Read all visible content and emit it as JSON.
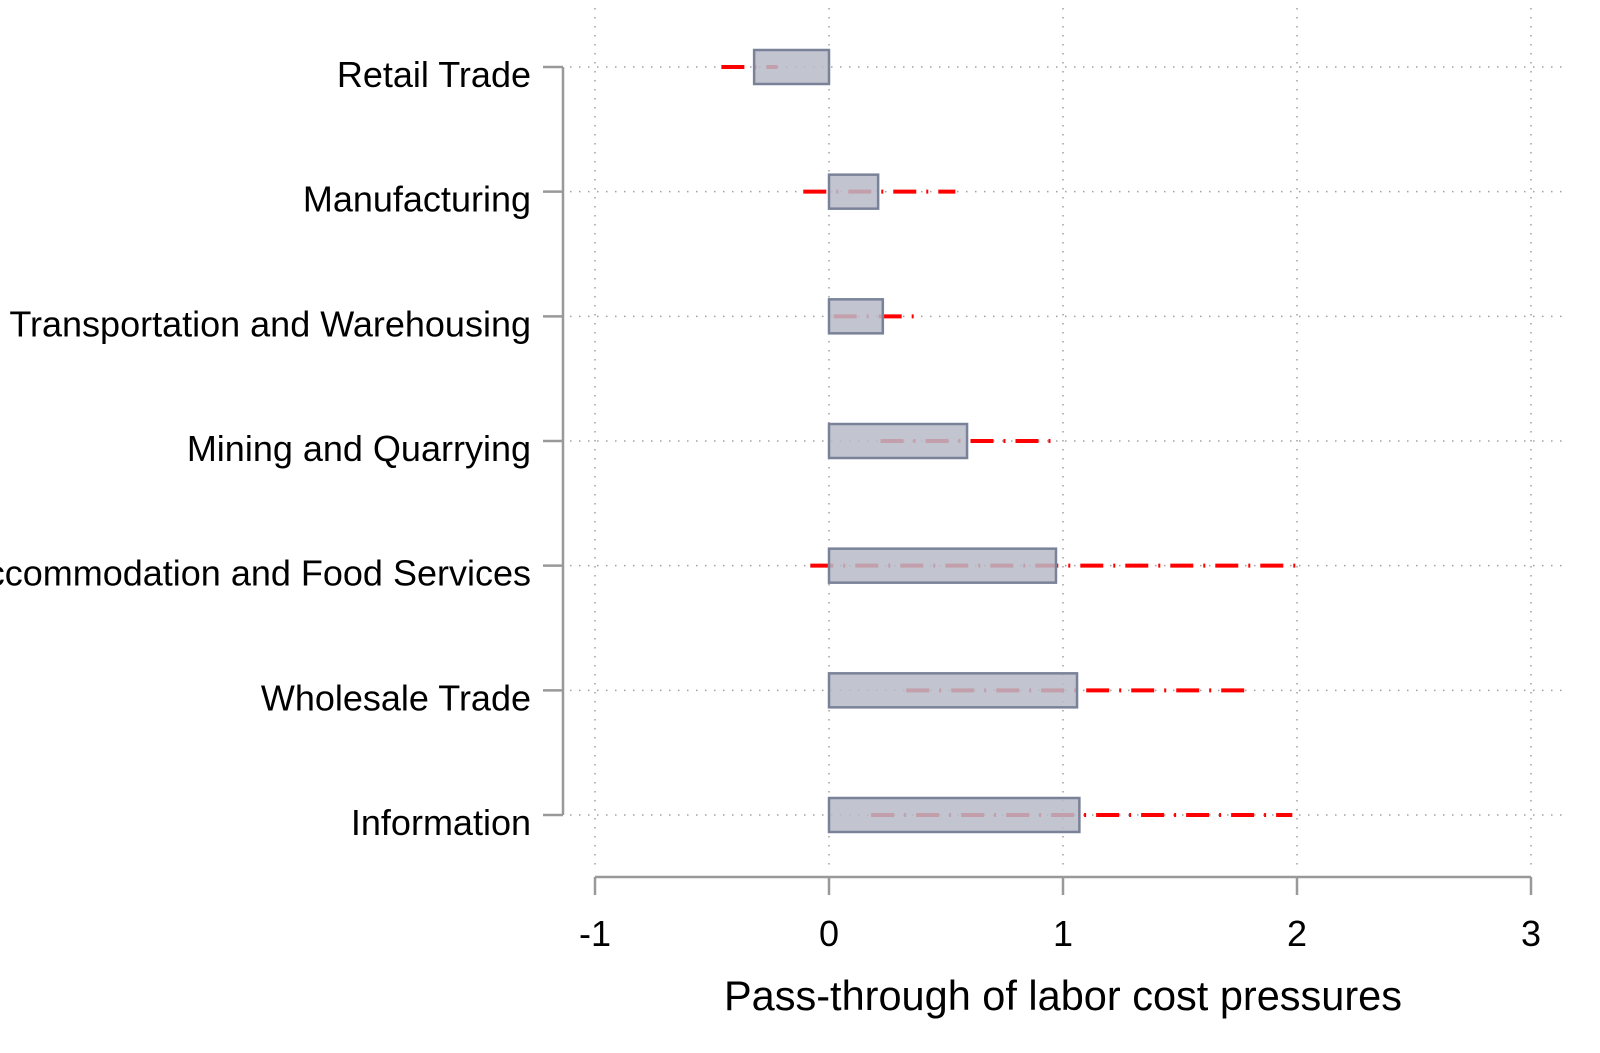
{
  "chart_data": {
    "type": "bar",
    "orientation": "horizontal",
    "xlabel": "Pass-through of labor cost pressures",
    "ylabel": "",
    "xlim": [
      -1,
      3
    ],
    "xticks": [
      "-1",
      "0",
      "1",
      "2",
      "3"
    ],
    "grid": true,
    "categories": [
      "Retail Trade",
      "Manufacturing",
      "Transportation and Warehousing",
      "Mining and Quarrying",
      "Accommodation and Food Services",
      "Wholesale Trade",
      "Information"
    ],
    "values": [
      -0.32,
      0.21,
      0.23,
      0.59,
      0.97,
      1.06,
      1.07
    ],
    "ci_low": [
      -0.46,
      -0.11,
      0.02,
      0.22,
      -0.08,
      0.33,
      0.18
    ],
    "ci_high": [
      -0.22,
      0.54,
      0.4,
      0.97,
      2.03,
      1.81,
      1.98
    ],
    "colors": {
      "bar_fill": "#b7bbc8",
      "bar_edge": "#7a8299",
      "ci": "#ff0000",
      "grid": "#a0a0a0",
      "axis": "#999999"
    }
  }
}
